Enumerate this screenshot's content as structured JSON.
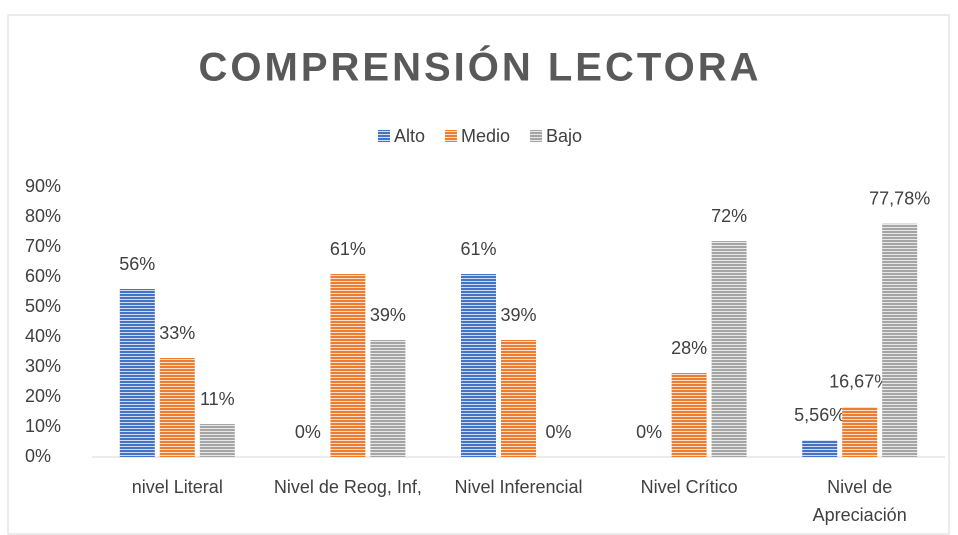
{
  "chart_data": {
    "type": "bar",
    "title": "COMPRENSIÓN LECTORA",
    "categories": [
      "nivel Literal",
      "Nivel de Reog, Inf,",
      "Nivel Inferencial",
      "Nivel Crítico",
      "Nivel de Apreciación"
    ],
    "series": [
      {
        "name": "Alto",
        "color": "#4472c4",
        "values": [
          56,
          0,
          61,
          0,
          5.56
        ],
        "value_labels": [
          "56%",
          "0%",
          "61%",
          "0%",
          "5,56%"
        ]
      },
      {
        "name": "Medio",
        "color": "#ed7d31",
        "values": [
          33,
          61,
          39,
          28,
          16.67
        ],
        "value_labels": [
          "33%",
          "61%",
          "39%",
          "28%",
          "16,67%"
        ]
      },
      {
        "name": "Bajo",
        "color": "#a5a5a5",
        "values": [
          11,
          39,
          0,
          72,
          77.78
        ],
        "value_labels": [
          "11%",
          "39%",
          "0%",
          "72%",
          "77,78%"
        ]
      }
    ],
    "ylim": [
      0,
      90
    ],
    "yticks": [
      {
        "value": 0,
        "label": "0%"
      },
      {
        "value": 10,
        "label": "10%"
      },
      {
        "value": 20,
        "label": "20%"
      },
      {
        "value": 30,
        "label": "30%"
      },
      {
        "value": 40,
        "label": "40%"
      },
      {
        "value": 50,
        "label": "50%"
      },
      {
        "value": 60,
        "label": "60%"
      },
      {
        "value": 70,
        "label": "70%"
      },
      {
        "value": 80,
        "label": "80%"
      },
      {
        "value": 90,
        "label": "90%"
      }
    ],
    "legend": "top",
    "grid": false
  }
}
